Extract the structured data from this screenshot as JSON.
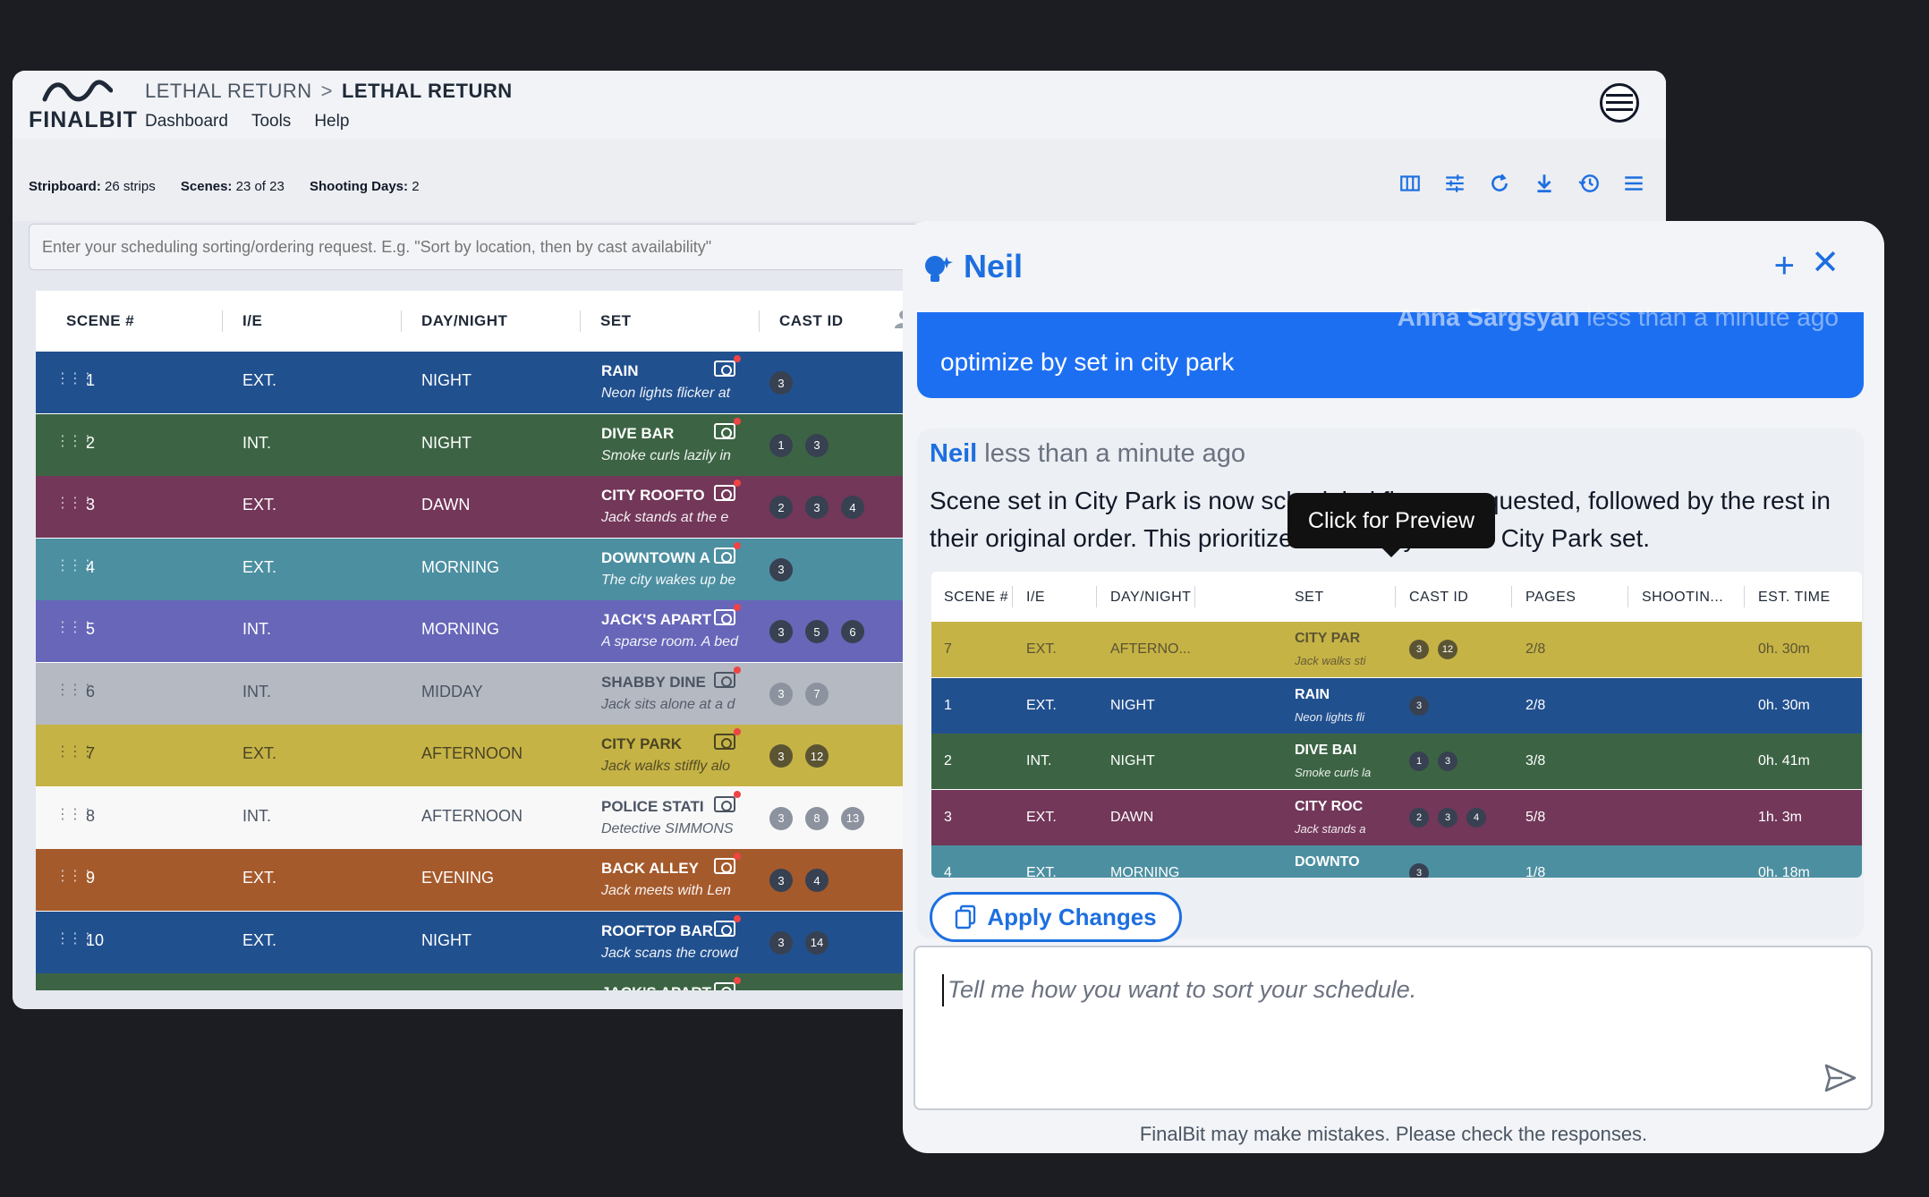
{
  "app": {
    "logo_text": "FINALBIT",
    "breadcrumb": [
      "LETHAL RETURN",
      "LETHAL RETURN"
    ],
    "menu": [
      "Dashboard",
      "Tools",
      "Help"
    ]
  },
  "summary": {
    "stripboard_label": "Stripboard:",
    "stripboard_value": "26 strips",
    "scenes_label": "Scenes:",
    "scenes_value": "23 of 23",
    "days_label": "Shooting Days:",
    "days_value": "2"
  },
  "toolbar": [
    "columns-icon",
    "sliders-icon",
    "refresh-icon",
    "download-icon",
    "history-icon",
    "menu-icon"
  ],
  "sort_input": {
    "placeholder": "Enter your scheduling sorting/ordering request. E.g. \"Sort by location, then by cast availability\""
  },
  "grid": {
    "headers": [
      "SCENE #",
      "I/E",
      "DAY/NIGHT",
      "SET",
      "CAST ID"
    ],
    "rows": [
      {
        "scene": "1",
        "ie": "EXT.",
        "dn": "NIGHT",
        "set": "RAIN",
        "desc": "Neon lights flicker at",
        "cast": [
          "3"
        ],
        "color": "#21508f",
        "theme": "dark"
      },
      {
        "scene": "2",
        "ie": "INT.",
        "dn": "NIGHT",
        "set": "DIVE BAR",
        "desc": "Smoke curls lazily in",
        "cast": [
          "1",
          "3"
        ],
        "color": "#3c6444",
        "theme": "dark"
      },
      {
        "scene": "3",
        "ie": "EXT.",
        "dn": "DAWN",
        "set": "CITY ROOFTO",
        "desc": "Jack stands at the e",
        "cast": [
          "2",
          "3",
          "4"
        ],
        "color": "#723759",
        "theme": "dark"
      },
      {
        "scene": "4",
        "ie": "EXT.",
        "dn": "MORNING",
        "set": "DOWNTOWN A",
        "desc": "The city wakes up be",
        "cast": [
          "3"
        ],
        "color": "#4c8fa1",
        "theme": "dark"
      },
      {
        "scene": "5",
        "ie": "INT.",
        "dn": "MORNING",
        "set": "JACK'S APART",
        "desc": "A sparse room. A bed",
        "cast": [
          "3",
          "5",
          "6"
        ],
        "color": "#6766b9",
        "theme": "dark"
      },
      {
        "scene": "6",
        "ie": "INT.",
        "dn": "MIDDAY",
        "set": "SHABBY DINE",
        "desc": "Jack sits alone at a d",
        "cast": [
          "3",
          "7"
        ],
        "color": "#b5b9c2",
        "theme": "grey"
      },
      {
        "scene": "7",
        "ie": "EXT.",
        "dn": "AFTERNOON",
        "set": "CITY PARK",
        "desc": "Jack walks stiffly alo",
        "cast": [
          "3",
          "12"
        ],
        "color": "#c6b346",
        "theme": "olive"
      },
      {
        "scene": "8",
        "ie": "INT.",
        "dn": "AFTERNOON",
        "set": "POLICE STATI",
        "desc": "Detective SIMMONS",
        "cast": [
          "3",
          "8",
          "13"
        ],
        "color": "#f8f8f9",
        "theme": "light"
      },
      {
        "scene": "9",
        "ie": "EXT.",
        "dn": "EVENING",
        "set": "BACK ALLEY",
        "desc": "Jack meets with Len",
        "cast": [
          "3",
          "4"
        ],
        "color": "#a55a2c",
        "theme": "dark"
      },
      {
        "scene": "10",
        "ie": "EXT.",
        "dn": "NIGHT",
        "set": "ROOFTOP BAR",
        "desc": "Jack scans the crowd",
        "cast": [
          "3",
          "14"
        ],
        "color": "#21508f",
        "theme": "dark"
      },
      {
        "scene": "",
        "ie": "",
        "dn": "",
        "set": "JACK'S APART",
        "desc": "",
        "cast": [],
        "color": "#3c6444",
        "theme": "dark"
      }
    ]
  },
  "chat": {
    "title": "Neil",
    "user_message": {
      "author": "Anna Sargsyan",
      "time": "less than a minute ago",
      "text": "optimize by set in city park"
    },
    "bot_message": {
      "author": "Neil",
      "time": "less than a minute ago",
      "text": "Scene set in City Park is now scheduled first as requested, followed by the rest in their original order. This prioritizes efficiency for the City Park set."
    },
    "tooltip": "Click for Preview",
    "preview": {
      "headers": [
        "SCENE #",
        "I/E",
        "DAY/NIGHT",
        "SET",
        "CAST ID",
        "PAGES",
        "SHOOTIN...",
        "EST. TIME"
      ],
      "rows": [
        {
          "scene": "7",
          "ie": "EXT.",
          "dn": "AFTERNO...",
          "set": "CITY PAR",
          "desc": "Jack walks sti",
          "cast": [
            "3",
            "12"
          ],
          "pages": "2/8",
          "est": "0h. 30m",
          "color": "#c6b346",
          "theme": "olive"
        },
        {
          "scene": "1",
          "ie": "EXT.",
          "dn": "NIGHT",
          "set": "RAIN",
          "desc": "Neon lights fli",
          "cast": [
            "3"
          ],
          "pages": "2/8",
          "est": "0h. 30m",
          "color": "#21508f",
          "theme": "dark"
        },
        {
          "scene": "2",
          "ie": "INT.",
          "dn": "NIGHT",
          "set": "DIVE BAI",
          "desc": "Smoke curls la",
          "cast": [
            "1",
            "3"
          ],
          "pages": "3/8",
          "est": "0h. 41m",
          "color": "#3c6444",
          "theme": "dark"
        },
        {
          "scene": "3",
          "ie": "EXT.",
          "dn": "DAWN",
          "set": "CITY ROC",
          "desc": "Jack stands a",
          "cast": [
            "2",
            "3",
            "4"
          ],
          "pages": "5/8",
          "est": "1h. 3m",
          "color": "#723759",
          "theme": "dark"
        },
        {
          "scene": "4",
          "ie": "EXT.",
          "dn": "MORNING",
          "set": "DOWNTO",
          "desc": "",
          "cast": [
            "3"
          ],
          "pages": "1/8",
          "est": "0h. 18m",
          "color": "#4c8fa1",
          "theme": "dark"
        }
      ]
    },
    "apply_label": "Apply Changes",
    "composer_placeholder": "Tell me how you want to sort your schedule.",
    "disclaimer": "FinalBit may make mistakes. Please check the responses."
  }
}
